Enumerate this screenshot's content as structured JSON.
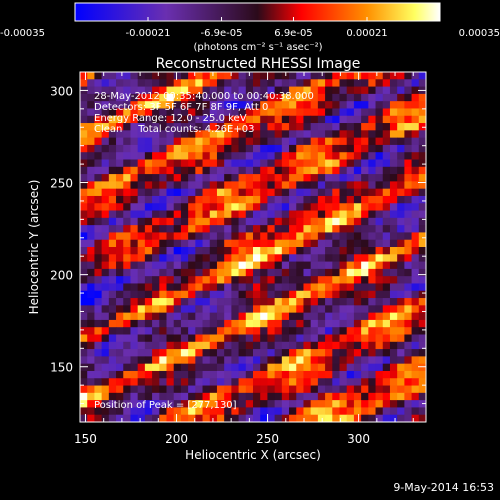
{
  "chart_data": {
    "type": "heatmap",
    "title": "Reconstructed RHESSI Image",
    "xlabel": "Heliocentric X (arcsec)",
    "ylabel": "Heliocentric Y (arcsec)",
    "xlim": [
      147,
      337
    ],
    "ylim": [
      120,
      310
    ],
    "x_ticks": [
      150,
      200,
      250,
      300
    ],
    "y_ticks": [
      150,
      200,
      250,
      300
    ],
    "colorbar": {
      "range": [
        -0.00035,
        0.00035
      ],
      "tick_values": [
        -0.00035,
        -0.00021,
        -6.9e-05,
        6.9e-05,
        0.00021,
        0.00035
      ],
      "tick_labels": [
        "-0.00035",
        "-0.00021",
        "-6.9e-05",
        "6.9e-05",
        "0.00021",
        "0.00035"
      ],
      "unit_label": "(photons cm⁻² s⁻¹ asec⁻²)"
    },
    "annotations": [
      "28-May-2012 00:35:40.000 to 00:40:38.000",
      "Detectors: 3F 5F 6F 7F 8F 9F, Att 0",
      "Energy Range: 12.0 - 25.0 keV",
      "Clean     Total counts: 4.26E+03"
    ],
    "peak_label": "Position of Peak = [277,130]",
    "peak_position": [
      277,
      130
    ],
    "grid": false,
    "colormap": [
      "#0000ff",
      "#6a2fb0",
      "#2b0a1a",
      "#ff0000",
      "#ff9000",
      "#ffff60",
      "#ffffff"
    ]
  },
  "footer_timestamp": "9-May-2014 16:53"
}
